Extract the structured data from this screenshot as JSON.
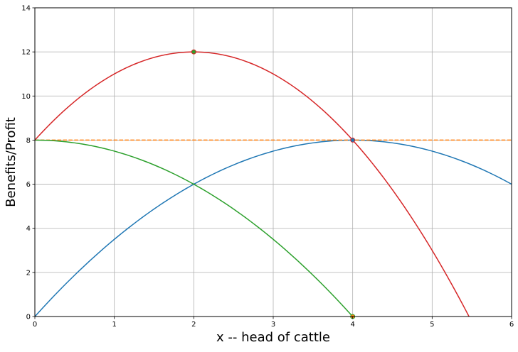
{
  "chart_data": {
    "type": "line",
    "title": "",
    "xlabel": "x -- head of cattle",
    "ylabel": "Benefits/Profit",
    "xlim": [
      0,
      6
    ],
    "ylim": [
      0,
      14
    ],
    "xticks": [
      "0",
      "1",
      "2",
      "3",
      "4",
      "5",
      "6"
    ],
    "yticks": [
      "0",
      "2",
      "4",
      "6",
      "8",
      "10",
      "12",
      "14"
    ],
    "grid": true,
    "series": [
      {
        "color": "#1f77b4",
        "style": "solid",
        "x": [
          0,
          0.5,
          1,
          1.5,
          2,
          2.5,
          3,
          3.5,
          4,
          4.5,
          5,
          5.5,
          6
        ],
        "y": [
          0,
          1.875,
          3.5,
          4.875,
          6,
          6.875,
          7.5,
          7.875,
          8,
          7.875,
          7.5,
          6.875,
          6
        ]
      },
      {
        "color": "#ff7f0e",
        "style": "dashed",
        "x": [
          0,
          6
        ],
        "y": [
          8,
          8
        ]
      },
      {
        "color": "#2ca02c",
        "style": "solid",
        "x": [
          0,
          0.5,
          1,
          1.5,
          2,
          2.5,
          3,
          3.5,
          4
        ],
        "y": [
          8,
          7.875,
          7.5,
          6.875,
          6,
          4.875,
          3.5,
          1.875,
          0
        ]
      },
      {
        "color": "#d62728",
        "style": "solid",
        "x": [
          0,
          0.5,
          1,
          1.5,
          2,
          2.5,
          3,
          3.5,
          4,
          4.5,
          5,
          5.464
        ],
        "y": [
          8,
          9.75,
          11,
          11.75,
          12,
          11.75,
          11,
          9.75,
          8,
          5.75,
          3,
          0
        ]
      }
    ],
    "markers": [
      {
        "x": 2,
        "y": 12,
        "color": "#2ca02c",
        "edge": "#d62728"
      },
      {
        "x": 4,
        "y": 8,
        "color": "#1f77b4",
        "edge": "#d62728"
      },
      {
        "x": 4,
        "y": 0,
        "color": "#ff7f0e",
        "edge": "#2ca02c"
      }
    ]
  }
}
